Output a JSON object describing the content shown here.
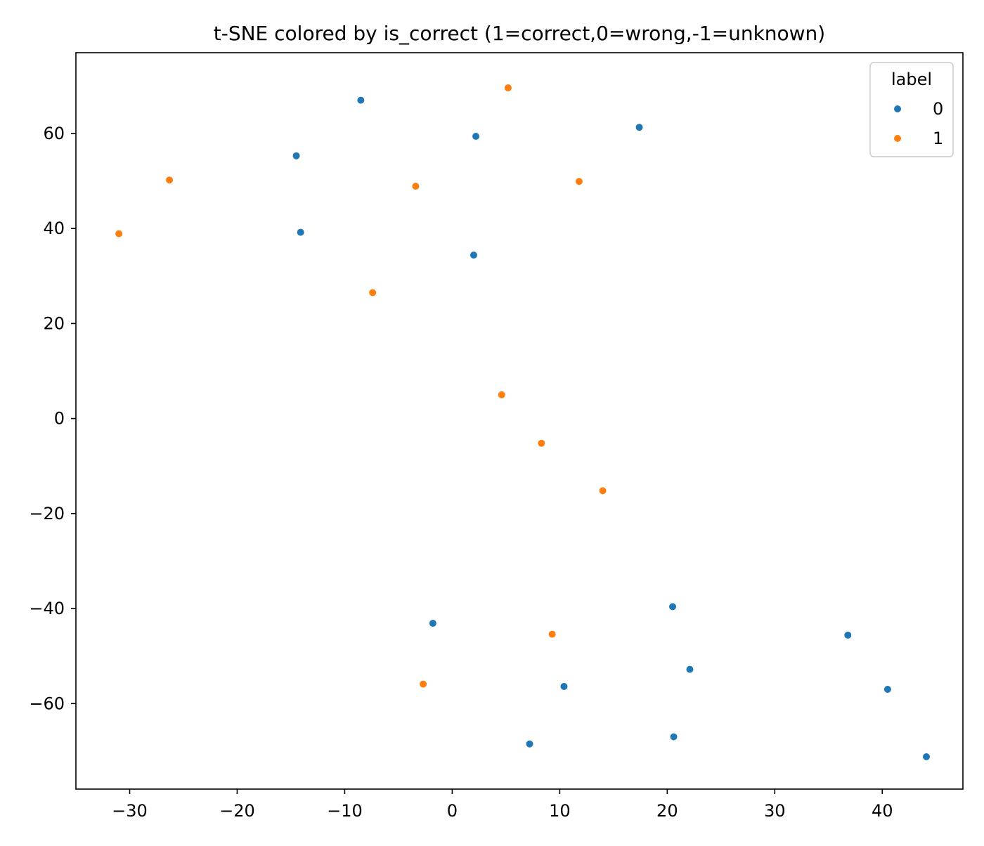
{
  "chart_data": {
    "type": "scatter",
    "title": "t-SNE colored by is_correct (1=correct,0=wrong,-1=unknown)",
    "xlabel": "",
    "ylabel": "",
    "xlim": [
      -35,
      47.5
    ],
    "ylim": [
      -78,
      77
    ],
    "xticks": [
      -30,
      -20,
      -10,
      0,
      10,
      20,
      30,
      40
    ],
    "yticks": [
      -60,
      -40,
      -20,
      0,
      20,
      40,
      60
    ],
    "tick_format": "unicode-minus",
    "grid": false,
    "legend": {
      "title": "label",
      "placement": "top-right"
    },
    "series": [
      {
        "name": "0",
        "color": "#1f77b4",
        "points": [
          {
            "x": -8.5,
            "y": 67.0
          },
          {
            "x": 2.2,
            "y": 59.4
          },
          {
            "x": 17.4,
            "y": 61.3
          },
          {
            "x": -14.5,
            "y": 55.3
          },
          {
            "x": -14.1,
            "y": 39.2
          },
          {
            "x": 2.0,
            "y": 34.4
          },
          {
            "x": 20.5,
            "y": -39.6
          },
          {
            "x": -1.8,
            "y": -43.1
          },
          {
            "x": 36.8,
            "y": -45.6
          },
          {
            "x": 22.1,
            "y": -52.8
          },
          {
            "x": 10.4,
            "y": -56.4
          },
          {
            "x": 40.5,
            "y": -57.0
          },
          {
            "x": 20.6,
            "y": -67.0
          },
          {
            "x": 7.2,
            "y": -68.5
          },
          {
            "x": 44.1,
            "y": -71.2
          }
        ]
      },
      {
        "name": "1",
        "color": "#ff7f0e",
        "points": [
          {
            "x": 5.2,
            "y": 69.6
          },
          {
            "x": -26.3,
            "y": 50.2
          },
          {
            "x": -3.4,
            "y": 48.9
          },
          {
            "x": 11.8,
            "y": 49.9
          },
          {
            "x": -31.0,
            "y": 38.9
          },
          {
            "x": -7.4,
            "y": 26.5
          },
          {
            "x": 4.6,
            "y": 5.0
          },
          {
            "x": 8.3,
            "y": -5.2
          },
          {
            "x": 14.0,
            "y": -15.2
          },
          {
            "x": 9.3,
            "y": -45.4
          },
          {
            "x": -2.7,
            "y": -55.9
          }
        ]
      }
    ]
  }
}
